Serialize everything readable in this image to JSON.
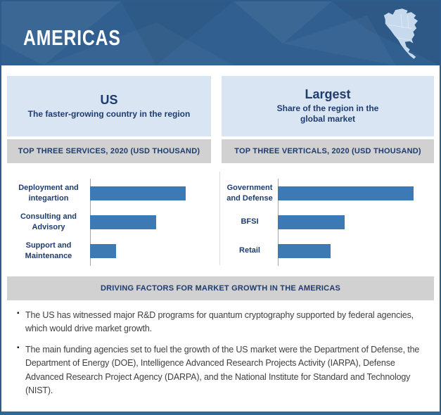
{
  "banner": {
    "title": "AMERICAS"
  },
  "colors": {
    "banner_bg": "#315F90",
    "frame_border": "#2C5C8B",
    "bottom_bar": "#35678F",
    "card_bg": "#D9E5F2",
    "section_header_bg": "#D1D1D1",
    "bar_fill": "#3D7AB5",
    "heading_text": "#1E3C6D",
    "body_text": "#3F3F3F",
    "axis_line": "#A6A6A6",
    "map_fill": "#C7DAED"
  },
  "highlight_cards": [
    {
      "title": "US",
      "subtitle": "The faster-growing country in the region"
    },
    {
      "title": "Largest",
      "subtitle": "Share of the region in the global market"
    }
  ],
  "section_headers": [
    "TOP THREE SERVICES, 2020 (USD THOUSAND)",
    "TOP THREE VERTICALS, 2020 (USD THOUSAND)"
  ],
  "chart_data": [
    {
      "type": "bar",
      "orientation": "horizontal",
      "title": "TOP THREE SERVICES, 2020 (USD THOUSAND)",
      "categories": [
        "Deployment and integartion",
        "Consulting and Advisory",
        "Support and Maintenance"
      ],
      "values_pct_of_plot_width": [
        78,
        54,
        21
      ],
      "relative_values_max_100": [
        100,
        69,
        27
      ],
      "value_labels_shown": false,
      "gridlines": false,
      "legend": false
    },
    {
      "type": "bar",
      "orientation": "horizontal",
      "title": "TOP THREE VERTICALS, 2020 (USD THOUSAND)",
      "categories": [
        "Government and Defense",
        "BFSI",
        "Retail"
      ],
      "values_pct_of_plot_width": [
        87,
        43,
        34
      ],
      "relative_values_max_100": [
        100,
        49,
        39
      ],
      "value_labels_shown": false,
      "gridlines": false,
      "legend": false
    }
  ],
  "driving_factors": {
    "header": "DRIVING FACTORS FOR MARKET GROWTH IN THE AMERICAS",
    "bullets": [
      "The US has witnessed major R&D programs for quantum cryptography supported by federal agencies, which would drive market growth.",
      "The main funding agencies set to fuel the growth of the US market were the Department of Defense, the Department of Energy (DOE), Intelligence Advanced Research Projects Activity (IARPA), Defense Advanced Research Project Agency (DARPA), and the National Institute for Standard and Technology (NIST)."
    ]
  }
}
